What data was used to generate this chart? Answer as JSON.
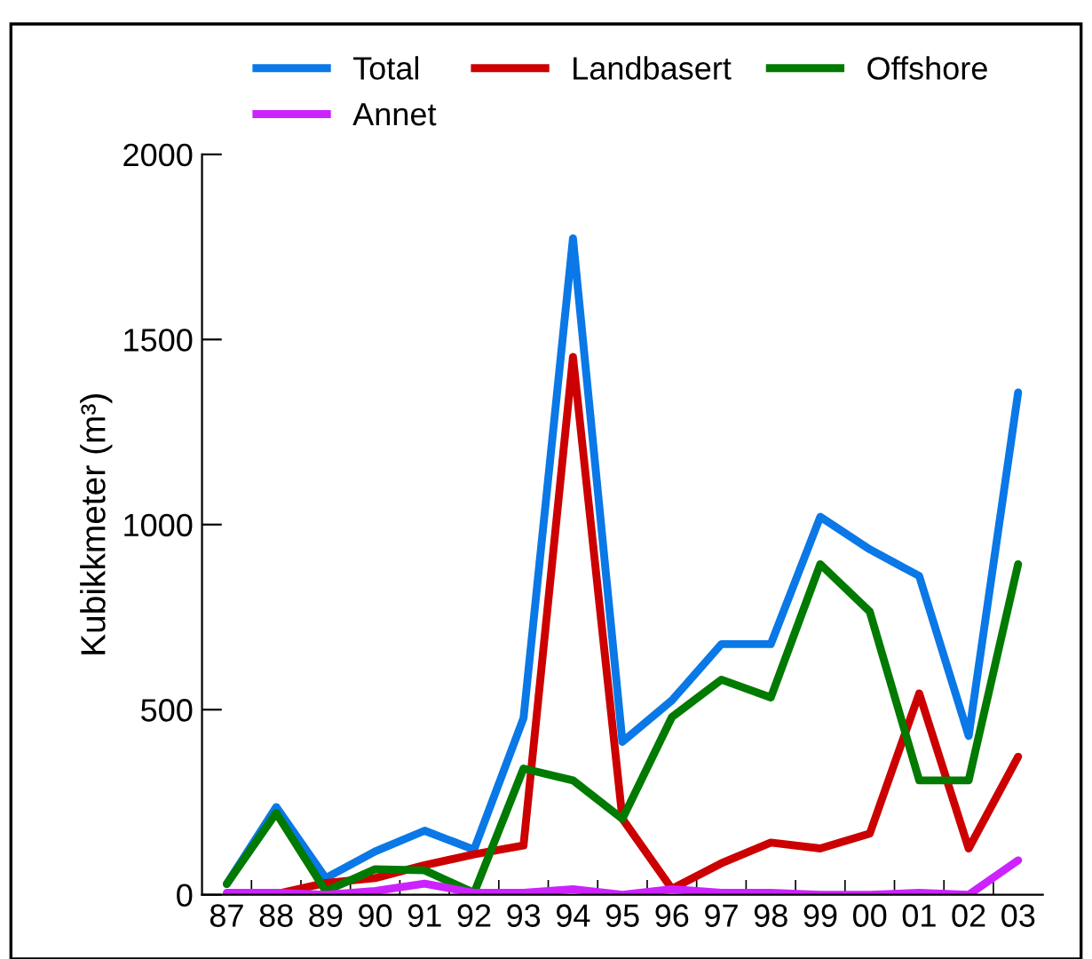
{
  "chart_data": {
    "type": "line",
    "ylabel": "Kubikkmeter (m³)",
    "categories": [
      "87",
      "88",
      "89",
      "90",
      "91",
      "92",
      "93",
      "94",
      "95",
      "96",
      "97",
      "98",
      "99",
      "00",
      "01",
      "02",
      "03"
    ],
    "series": [
      {
        "name": "Total",
        "color": "#0a78e6",
        "values": [
          29,
          237,
          45,
          117,
          173,
          122,
          477,
          1773,
          413,
          525,
          677,
          677,
          1021,
          933,
          861,
          429,
          1357
        ]
      },
      {
        "name": "Landbasert",
        "color": "#cc0000",
        "values": [
          0,
          2,
          32,
          45,
          80,
          109,
          133,
          1453,
          205,
          16,
          85,
          141,
          125,
          165,
          544,
          125,
          373
        ]
      },
      {
        "name": "Offshore",
        "color": "#007a00",
        "values": [
          29,
          221,
          10,
          69,
          66,
          5,
          341,
          309,
          205,
          480,
          581,
          533,
          893,
          765,
          309,
          309,
          893
        ]
      },
      {
        "name": "Annet",
        "color": "#cc22ff",
        "values": [
          5,
          5,
          0,
          10,
          30,
          5,
          5,
          15,
          0,
          15,
          5,
          5,
          0,
          0,
          5,
          0,
          93
        ]
      }
    ],
    "ylim": [
      0,
      2000
    ],
    "yticks": [
      0,
      500,
      1000,
      1500,
      2000
    ],
    "grid": false,
    "legend": "top",
    "line_style": "solid"
  }
}
